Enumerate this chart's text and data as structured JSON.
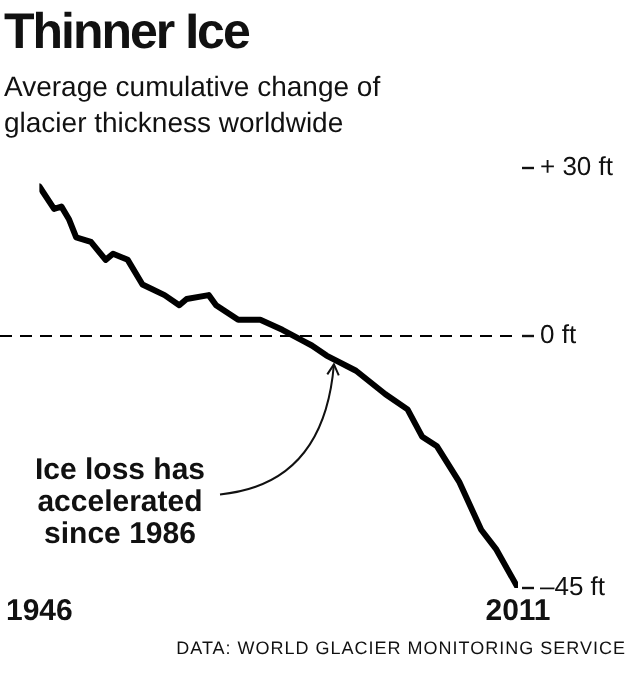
{
  "chart_data": {
    "type": "line",
    "title": "Thinner Ice",
    "subtitle": "Average cumulative change of glacier thickness worldwide",
    "x": [
      1946,
      1948,
      1949,
      1950,
      1951,
      1953,
      1955,
      1956,
      1958,
      1960,
      1963,
      1965,
      1966,
      1969,
      1970,
      1973,
      1976,
      1979,
      1982,
      1983,
      1985,
      1989,
      1993,
      1996,
      1998,
      2000,
      2003,
      2006,
      2008,
      2011
    ],
    "series": [
      {
        "color": "#000000",
        "values": [
          26.7,
          22.7,
          23.1,
          20.9,
          17.6,
          16.8,
          13.6,
          14.7,
          13.6,
          9.2,
          7.3,
          5.5,
          6.6,
          7.3,
          5.5,
          2.9,
          2.9,
          1.1,
          -1.0,
          -1.7,
          -3.5,
          -6.2,
          -10.4,
          -13.1,
          -18,
          -19.7,
          -26,
          -34.6,
          -38,
          -45
        ]
      }
    ],
    "xlim": [
      1946,
      2011
    ],
    "xticks": [
      1946,
      2011
    ],
    "ylim": [
      -45,
      30
    ],
    "yticks": [
      {
        "value": 30,
        "label": "+ 30 ft"
      },
      {
        "value": 0,
        "label": "0 ft"
      },
      {
        "value": -45,
        "label": "–45 ft"
      }
    ],
    "ref_lines": [
      {
        "axis": "y",
        "value": 0,
        "line_style": "dashed",
        "color": "#000000"
      }
    ],
    "grid": false,
    "legend": false,
    "marker": "none",
    "line_style": "solid",
    "annotations": [
      {
        "text": "Ice loss has accelerated since 1986",
        "x": 1986,
        "y": -4
      },
      "DATA: WORLD GLACIER MONITORING SERVICE"
    ]
  }
}
